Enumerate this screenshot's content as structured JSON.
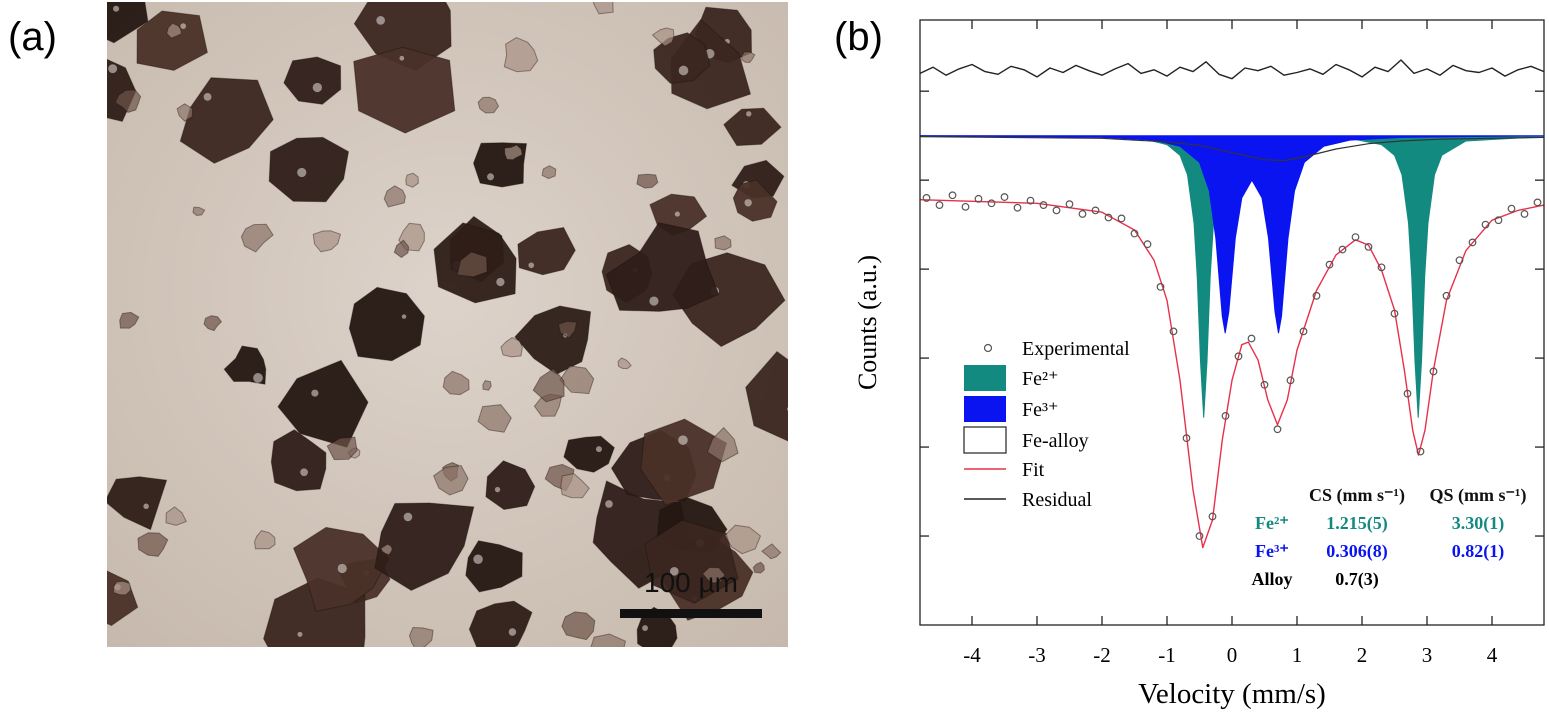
{
  "panels": {
    "a": {
      "label": "(a)",
      "scale_bar": "100 µm"
    },
    "b": {
      "label": "(b)"
    }
  },
  "chart_data": {
    "type": "line",
    "x_label": "Velocity (mm/s)",
    "y_label": "Counts (a.u.)",
    "xlim": [
      -4.8,
      4.8
    ],
    "xticks": [
      -4,
      -3,
      -2,
      -1,
      0,
      1,
      2,
      3,
      4
    ],
    "ylim": [
      0,
      6.8
    ],
    "yticks": [
      1,
      2,
      3,
      4,
      5,
      6
    ],
    "series": [
      {
        "name": "Experimental",
        "kind": "points",
        "color": "#555555",
        "x": [
          -4.7,
          -4.5,
          -4.3,
          -4.1,
          -3.9,
          -3.7,
          -3.5,
          -3.3,
          -3.1,
          -2.9,
          -2.7,
          -2.5,
          -2.3,
          -2.1,
          -1.9,
          -1.7,
          -1.5,
          -1.3,
          -1.1,
          -0.9,
          -0.7,
          -0.5,
          -0.3,
          -0.1,
          0.1,
          0.3,
          0.5,
          0.7,
          0.9,
          1.1,
          1.3,
          1.5,
          1.7,
          1.9,
          2.1,
          2.3,
          2.5,
          2.7,
          2.9,
          3.1,
          3.3,
          3.5,
          3.7,
          3.9,
          4.1,
          4.3,
          4.5,
          4.7
        ],
        "values": [
          4.8,
          4.72,
          4.83,
          4.7,
          4.79,
          4.74,
          4.81,
          4.69,
          4.77,
          4.72,
          4.66,
          4.73,
          4.62,
          4.66,
          4.58,
          4.57,
          4.4,
          4.28,
          3.8,
          3.3,
          2.1,
          1.0,
          1.22,
          2.35,
          3.02,
          3.22,
          2.7,
          2.2,
          2.75,
          3.3,
          3.7,
          4.05,
          4.22,
          4.36,
          4.25,
          4.02,
          3.5,
          2.6,
          1.95,
          2.85,
          3.7,
          4.1,
          4.3,
          4.5,
          4.55,
          4.68,
          4.62,
          4.75
        ]
      },
      {
        "name": "Fe²⁺",
        "kind": "area",
        "color": "#138a80",
        "x": [
          -4.8,
          -2,
          -1.4,
          -1.0,
          -0.8,
          -0.685,
          -0.585,
          -0.535,
          -0.485,
          -0.435,
          -0.385,
          -0.335,
          -0.285,
          -0.185,
          -0.07,
          0.3,
          1.0,
          1.8,
          2.3,
          2.5,
          2.615,
          2.715,
          2.765,
          2.815,
          2.865,
          2.915,
          2.965,
          3.015,
          3.115,
          3.23,
          3.6,
          4.8
        ],
        "values": [
          5.5,
          5.49,
          5.47,
          5.4,
          5.28,
          5.06,
          4.52,
          3.92,
          2.96,
          2.33,
          2.96,
          3.92,
          4.52,
          5.06,
          5.28,
          5.44,
          5.48,
          5.47,
          5.4,
          5.28,
          5.06,
          4.52,
          3.92,
          2.96,
          2.33,
          2.96,
          3.92,
          4.52,
          5.06,
          5.28,
          5.44,
          5.49
        ]
      },
      {
        "name": "Fe³⁺",
        "kind": "area",
        "color": "#0a14f0",
        "x": [
          -4.8,
          -2,
          -1.2,
          -0.8,
          -0.5,
          -0.35,
          -0.25,
          -0.15,
          -0.104,
          -0.05,
          0.05,
          0.15,
          0.306,
          0.462,
          0.562,
          0.662,
          0.716,
          0.762,
          0.862,
          0.962,
          1.112,
          1.412,
          1.812,
          2.612,
          4.8
        ],
        "values": [
          5.5,
          5.48,
          5.45,
          5.38,
          5.2,
          4.88,
          4.35,
          3.47,
          3.28,
          3.52,
          4.35,
          4.8,
          5.0,
          4.8,
          4.35,
          3.52,
          3.28,
          3.47,
          4.35,
          4.88,
          5.2,
          5.38,
          5.45,
          5.48,
          5.5
        ]
      },
      {
        "name": "Fe-alloy",
        "kind": "outline",
        "color": "#333333",
        "x": [
          -4.8,
          -2,
          -1,
          -0.5,
          0,
          0.5,
          0.8,
          1.1,
          1.6,
          2.1,
          2.6,
          3.2,
          4.8
        ],
        "values": [
          5.49,
          5.47,
          5.43,
          5.39,
          5.31,
          5.23,
          5.22,
          5.26,
          5.35,
          5.41,
          5.44,
          5.46,
          5.48
        ]
      },
      {
        "name": "Fit",
        "kind": "line",
        "color": "#e8304a",
        "x": [
          -4.8,
          -3,
          -2,
          -1.5,
          -1.2,
          -1,
          -0.8,
          -0.6,
          -0.45,
          -0.3,
          -0.15,
          0,
          0.15,
          0.25,
          0.4,
          0.55,
          0.7,
          0.85,
          1,
          1.3,
          1.6,
          1.9,
          2.1,
          2.3,
          2.5,
          2.65,
          2.78,
          2.87,
          2.97,
          3.1,
          3.3,
          3.6,
          4,
          4.4,
          4.8
        ],
        "values": [
          4.78,
          4.74,
          4.64,
          4.44,
          4.1,
          3.65,
          2.75,
          1.52,
          0.87,
          1.18,
          2.08,
          2.75,
          3.15,
          3.18,
          2.98,
          2.53,
          2.25,
          2.53,
          3.09,
          3.76,
          4.16,
          4.33,
          4.27,
          3.99,
          3.54,
          2.87,
          2.19,
          1.91,
          2.19,
          2.87,
          3.65,
          4.21,
          4.55,
          4.66,
          4.72
        ]
      },
      {
        "name": "Residual",
        "kind": "line",
        "color": "#222222",
        "x": [
          -4.8,
          -4.6,
          -4.4,
          -4.2,
          -4.0,
          -3.8,
          -3.6,
          -3.4,
          -3.2,
          -3.0,
          -2.8,
          -2.6,
          -2.4,
          -2.2,
          -2.0,
          -1.8,
          -1.6,
          -1.4,
          -1.2,
          -1.0,
          -0.8,
          -0.6,
          -0.4,
          -0.2,
          0,
          0.2,
          0.4,
          0.6,
          0.8,
          1.0,
          1.2,
          1.4,
          1.6,
          1.8,
          2.0,
          2.2,
          2.4,
          2.6,
          2.8,
          3.0,
          3.2,
          3.4,
          3.6,
          3.8,
          4.0,
          4.2,
          4.4,
          4.6,
          4.8
        ],
        "values": [
          6.2,
          6.27,
          6.18,
          6.25,
          6.3,
          6.22,
          6.19,
          6.28,
          6.24,
          6.16,
          6.26,
          6.21,
          6.29,
          6.23,
          6.18,
          6.25,
          6.31,
          6.2,
          6.24,
          6.17,
          6.27,
          6.22,
          6.33,
          6.19,
          6.14,
          6.26,
          6.23,
          6.28,
          6.18,
          6.21,
          6.25,
          6.19,
          6.3,
          6.24,
          6.16,
          6.27,
          6.22,
          6.35,
          6.2,
          6.25,
          6.18,
          6.29,
          6.23,
          6.21,
          6.26,
          6.17,
          6.24,
          6.28,
          6.22
        ]
      }
    ],
    "parameter_table": {
      "header": [
        "CS (mm s⁻¹)",
        "QS (mm s⁻¹)"
      ],
      "rows": [
        {
          "color": "#138a80",
          "cells": [
            "Fe²⁺",
            "1.215(5)",
            "3.30(1)"
          ]
        },
        {
          "color": "#0a14f0",
          "cells": [
            "Fe³⁺",
            "0.306(8)",
            "0.82(1)"
          ]
        },
        {
          "color": "#000000",
          "cells": [
            "Alloy",
            "0.7(3)"
          ]
        }
      ]
    }
  }
}
